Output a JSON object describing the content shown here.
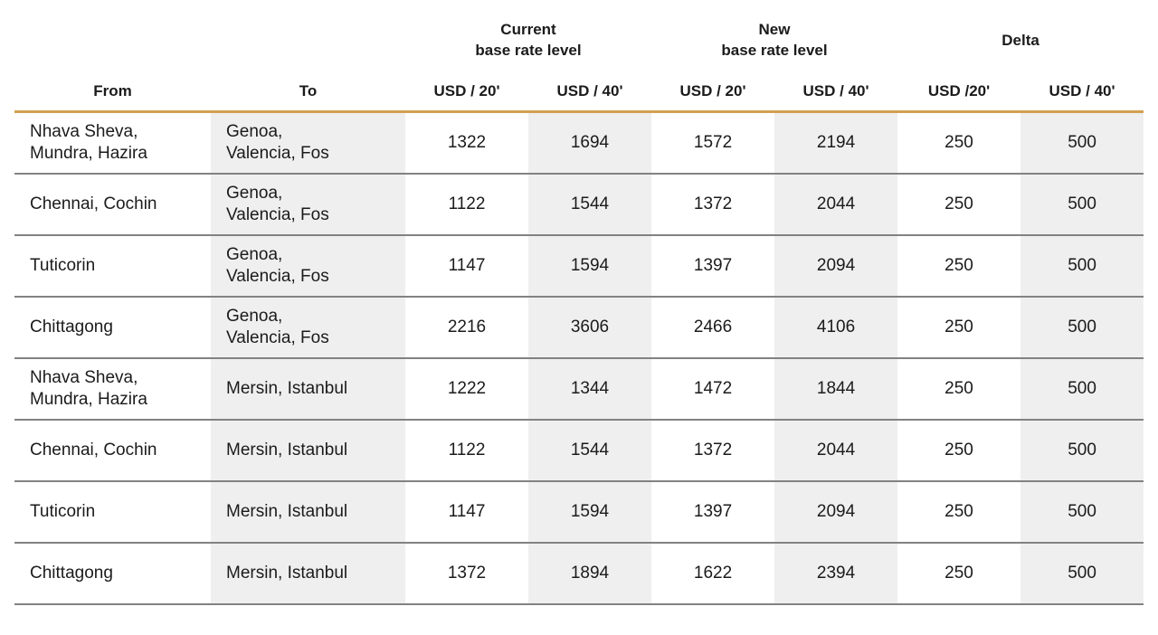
{
  "colors": {
    "header_rule_accent": "#D2A052",
    "row_rule": "#828282",
    "shaded_column_bg": "#EFEFEF",
    "text": "#1B1B1B"
  },
  "table": {
    "header": {
      "groups": [
        {
          "label": "Current\nbase rate level"
        },
        {
          "label": "New\nbase rate level"
        },
        {
          "label": "Delta"
        }
      ],
      "columns": {
        "from": "From",
        "to": "To",
        "current_20": "USD / 20'",
        "current_40": "USD / 40'",
        "new_20": "USD / 20'",
        "new_40": "USD / 40'",
        "delta_20": "USD /20'",
        "delta_40": "USD / 40'"
      }
    },
    "rows": [
      {
        "from": "Nhava Sheva,\nMundra, Hazira",
        "to": "Genoa,\nValencia, Fos",
        "current_20": "1322",
        "current_40": "1694",
        "new_20": "1572",
        "new_40": "2194",
        "delta_20": "250",
        "delta_40": "500"
      },
      {
        "from": "Chennai, Cochin",
        "to": "Genoa,\nValencia, Fos",
        "current_20": "1122",
        "current_40": "1544",
        "new_20": "1372",
        "new_40": "2044",
        "delta_20": "250",
        "delta_40": "500"
      },
      {
        "from": "Tuticorin",
        "to": "Genoa,\nValencia, Fos",
        "current_20": "1147",
        "current_40": "1594",
        "new_20": "1397",
        "new_40": "2094",
        "delta_20": "250",
        "delta_40": "500"
      },
      {
        "from": "Chittagong",
        "to": "Genoa,\nValencia, Fos",
        "current_20": "2216",
        "current_40": "3606",
        "new_20": "2466",
        "new_40": "4106",
        "delta_20": "250",
        "delta_40": "500"
      },
      {
        "from": "Nhava Sheva,\nMundra, Hazira",
        "to": "Mersin, Istanbul",
        "current_20": "1222",
        "current_40": "1344",
        "new_20": "1472",
        "new_40": "1844",
        "delta_20": "250",
        "delta_40": "500"
      },
      {
        "from": "Chennai, Cochin",
        "to": "Mersin, Istanbul",
        "current_20": "1122",
        "current_40": "1544",
        "new_20": "1372",
        "new_40": "2044",
        "delta_20": "250",
        "delta_40": "500"
      },
      {
        "from": "Tuticorin",
        "to": "Mersin, Istanbul",
        "current_20": "1147",
        "current_40": "1594",
        "new_20": "1397",
        "new_40": "2094",
        "delta_20": "250",
        "delta_40": "500"
      },
      {
        "from": "Chittagong",
        "to": "Mersin, Istanbul",
        "current_20": "1372",
        "current_40": "1894",
        "new_20": "1622",
        "new_40": "2394",
        "delta_20": "250",
        "delta_40": "500"
      }
    ]
  }
}
